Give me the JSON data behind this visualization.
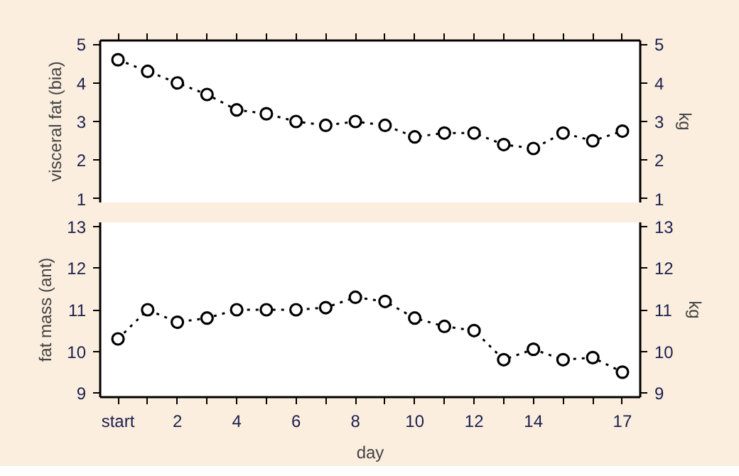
{
  "chart_data": [
    {
      "type": "line",
      "ylabel": "visceral fat (bia)",
      "y2label": "kg",
      "x": [
        0,
        1,
        2,
        3,
        4,
        5,
        6,
        7,
        8,
        9,
        10,
        11,
        12,
        13,
        14,
        15,
        16,
        17
      ],
      "series": [
        {
          "color": "#000000",
          "values": [
            4.6,
            4.3,
            4.0,
            3.7,
            3.3,
            3.2,
            3.0,
            2.9,
            3.0,
            2.9,
            2.6,
            2.7,
            2.7,
            2.4,
            2.3,
            2.7,
            2.5,
            2.75
          ]
        }
      ],
      "xlim": [
        -0.6,
        17.6
      ],
      "xticks": [
        {
          "value": 0,
          "label": null
        },
        {
          "value": 1,
          "label": null
        },
        {
          "value": 2,
          "label": null
        },
        {
          "value": 3,
          "label": null
        },
        {
          "value": 4,
          "label": null
        },
        {
          "value": 5,
          "label": null
        },
        {
          "value": 6,
          "label": null
        },
        {
          "value": 7,
          "label": null
        },
        {
          "value": 8,
          "label": null
        },
        {
          "value": 9,
          "label": null
        },
        {
          "value": 10,
          "label": null
        },
        {
          "value": 11,
          "label": null
        },
        {
          "value": 12,
          "label": null
        },
        {
          "value": 13,
          "label": null
        },
        {
          "value": 14,
          "label": null
        },
        {
          "value": 15,
          "label": null
        },
        {
          "value": 16,
          "label": null
        },
        {
          "value": 17,
          "label": null
        }
      ],
      "ylim": [
        0.9,
        5.1
      ],
      "yticks": [
        1,
        2,
        3,
        4,
        5
      ],
      "y2lim": [
        0.9,
        5.1
      ],
      "y2ticks": [
        1,
        2,
        3,
        4,
        5
      ],
      "tick_labels": "y",
      "marker": "circle",
      "line_style": "dotted",
      "grid": false
    },
    {
      "type": "line",
      "ylabel": "fat mass (ant)",
      "y2label": "kg",
      "xlabel": "day",
      "x": [
        0,
        1,
        2,
        3,
        4,
        5,
        6,
        7,
        8,
        9,
        10,
        11,
        12,
        13,
        14,
        15,
        16,
        17
      ],
      "series": [
        {
          "color": "#000000",
          "values": [
            10.3,
            11.0,
            10.7,
            10.8,
            11.0,
            11.0,
            11.0,
            11.05,
            11.3,
            11.2,
            10.8,
            10.6,
            10.5,
            9.8,
            10.05,
            9.8,
            9.85,
            9.5
          ]
        }
      ],
      "xlim": [
        -0.6,
        17.6
      ],
      "xticks": [
        {
          "value": 0,
          "label": "start"
        },
        {
          "value": 1,
          "label": null
        },
        2,
        {
          "value": 3,
          "label": null
        },
        4,
        {
          "value": 5,
          "label": null
        },
        6,
        {
          "value": 7,
          "label": null
        },
        8,
        {
          "value": 9,
          "label": null
        },
        10,
        {
          "value": 11,
          "label": null
        },
        12,
        {
          "value": 13,
          "label": null
        },
        14,
        {
          "value": 15,
          "label": null
        },
        {
          "value": 16,
          "label": null
        },
        17
      ],
      "ylim": [
        8.9,
        13.1
      ],
      "yticks": [
        9,
        10,
        11,
        12,
        13
      ],
      "y2lim": [
        8.9,
        13.1
      ],
      "y2ticks": [
        9,
        10,
        11,
        12,
        13
      ],
      "marker": "circle",
      "line_style": "dotted",
      "grid": false
    }
  ]
}
